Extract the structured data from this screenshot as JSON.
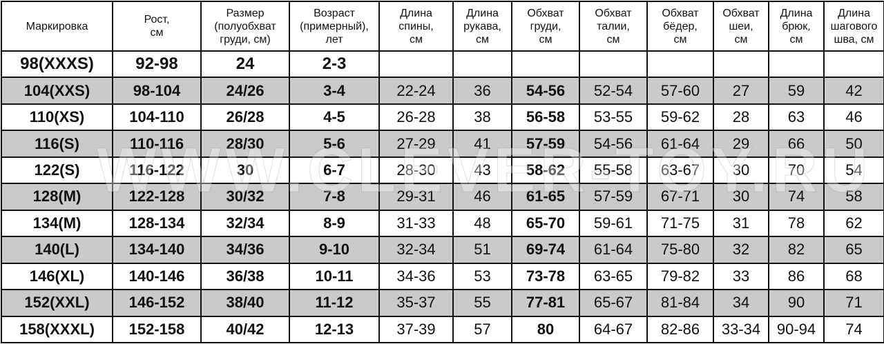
{
  "headers": [
    "Маркировка",
    "Рост,\nсм",
    "Размер\n(полуобхват\nгруди, см)",
    "Возраст\n(примерный),\nлет",
    "Длина\nспины,\nсм",
    "Длина\nрукава,\nсм",
    "Обхват\nгруди,\nсм",
    "Обхват\nталии,\nсм",
    "Обхват\nбёдер,\nсм",
    "Обхват\nшеи,\nсм",
    "Длина\nбрюк,\nсм",
    "Длина\nшагового\nшва, см"
  ],
  "rows": [
    [
      "98(XXXS)",
      "92-98",
      "24",
      "2-3",
      "",
      "",
      "",
      "",
      "",
      "",
      "",
      ""
    ],
    [
      "104(XXS)",
      "98-104",
      "24/26",
      "3-4",
      "22-24",
      "36",
      "54-56",
      "52-54",
      "57-60",
      "27",
      "59",
      "42"
    ],
    [
      "110(XS)",
      "104-110",
      "26/28",
      "4-5",
      "26-28",
      "38",
      "56-58",
      "53-55",
      "59-62",
      "28",
      "63",
      "46"
    ],
    [
      "116(S)",
      "110-116",
      "28/30",
      "5-6",
      "27-29",
      "41",
      "57-59",
      "54-56",
      "61-64",
      "29",
      "66",
      "50"
    ],
    [
      "122(S)",
      "116-122",
      "30",
      "6-7",
      "28-30",
      "43",
      "58-62",
      "55-58",
      "63-67",
      "30",
      "70",
      "54"
    ],
    [
      "128(M)",
      "122-128",
      "30/32",
      "7-8",
      "29-31",
      "46",
      "61-65",
      "57-59",
      "67-71",
      "30",
      "74",
      "58"
    ],
    [
      "134(M)",
      "128-134",
      "32/34",
      "8-9",
      "31-33",
      "48",
      "65-70",
      "59-61",
      "71-75",
      "31",
      "78",
      "62"
    ],
    [
      "140(L)",
      "134-140",
      "34/36",
      "9-10",
      "32-34",
      "51",
      "69-74",
      "61-64",
      "75-80",
      "32",
      "82",
      "65"
    ],
    [
      "146(XL)",
      "140-146",
      "36/38",
      "10-11",
      "34-36",
      "53",
      "73-78",
      "63-65",
      "79-82",
      "33",
      "86",
      "68"
    ],
    [
      "152(XXL)",
      "146-152",
      "38/40",
      "11-12",
      "35-37",
      "55",
      "77-81",
      "65-67",
      "81-84",
      "34",
      "90",
      "71"
    ],
    [
      "158(XXXL)",
      "152-158",
      "40/42",
      "12-13",
      "37-39",
      "57",
      "80",
      "64-67",
      "82-86",
      "33-34",
      "90-94",
      "74"
    ]
  ],
  "watermark": "WWW.CLEVER-TOY.RU",
  "colors": {
    "stripe": "#cacaca",
    "border": "#111111"
  }
}
